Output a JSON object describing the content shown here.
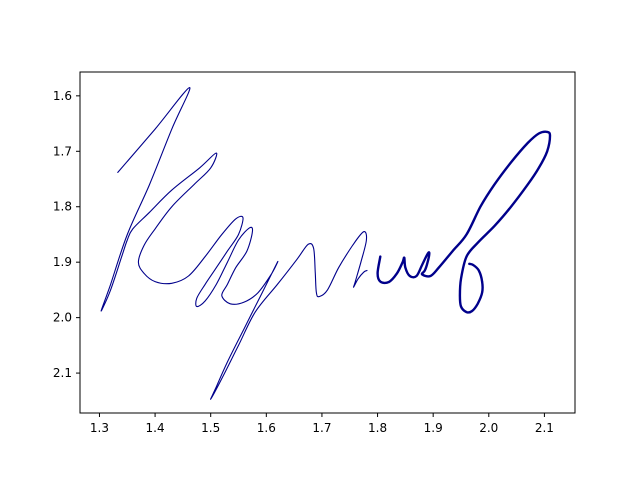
{
  "chart_data": {
    "type": "line",
    "title": "",
    "xlabel": "",
    "ylabel": "",
    "xlim": [
      1.265,
      2.155
    ],
    "ylim": [
      2.172,
      1.557
    ],
    "y_inverted": true,
    "grid": false,
    "legend": "none",
    "x_ticks": [
      {
        "value": 1.3,
        "label": "1.3"
      },
      {
        "value": 1.4,
        "label": "1.4"
      },
      {
        "value": 1.5,
        "label": "1.5"
      },
      {
        "value": 1.6,
        "label": "1.6"
      },
      {
        "value": 1.7,
        "label": "1.7"
      },
      {
        "value": 1.8,
        "label": "1.8"
      },
      {
        "value": 1.9,
        "label": "1.9"
      },
      {
        "value": 2.0,
        "label": "2.0"
      },
      {
        "value": 2.1,
        "label": "2.1"
      }
    ],
    "y_ticks": [
      {
        "value": 1.6,
        "label": "1.6"
      },
      {
        "value": 1.7,
        "label": "1.7"
      },
      {
        "value": 1.8,
        "label": "1.8"
      },
      {
        "value": 1.9,
        "label": "1.9"
      },
      {
        "value": 2.0,
        "label": "2.0"
      },
      {
        "value": 2.1,
        "label": "2.1"
      }
    ],
    "line_color": "#00008b",
    "series": [
      {
        "stroke": "thin",
        "points": [
          [
            1.333,
            1.738
          ],
          [
            1.4,
            1.66
          ],
          [
            1.462,
            1.585
          ],
          [
            1.43,
            1.66
          ],
          [
            1.39,
            1.76
          ],
          [
            1.35,
            1.85
          ],
          [
            1.32,
            1.94
          ],
          [
            1.303,
            1.988
          ],
          [
            1.32,
            1.95
          ],
          [
            1.34,
            1.89
          ],
          [
            1.35,
            1.86
          ],
          [
            1.36,
            1.84
          ],
          [
            1.39,
            1.81
          ],
          [
            1.43,
            1.77
          ],
          [
            1.48,
            1.73
          ],
          [
            1.51,
            1.703
          ],
          [
            1.5,
            1.73
          ],
          [
            1.47,
            1.76
          ],
          [
            1.43,
            1.8
          ],
          [
            1.4,
            1.84
          ],
          [
            1.38,
            1.87
          ],
          [
            1.37,
            1.9
          ],
          [
            1.38,
            1.92
          ],
          [
            1.4,
            1.935
          ],
          [
            1.43,
            1.938
          ],
          [
            1.46,
            1.925
          ],
          [
            1.49,
            1.89
          ],
          [
            1.52,
            1.85
          ],
          [
            1.545,
            1.822
          ],
          [
            1.558,
            1.82
          ],
          [
            1.55,
            1.85
          ],
          [
            1.53,
            1.88
          ],
          [
            1.51,
            1.91
          ],
          [
            1.49,
            1.94
          ],
          [
            1.475,
            1.965
          ],
          [
            1.475,
            1.98
          ],
          [
            1.49,
            1.97
          ],
          [
            1.51,
            1.94
          ],
          [
            1.53,
            1.9
          ],
          [
            1.55,
            1.86
          ],
          [
            1.57,
            1.838
          ],
          [
            1.575,
            1.845
          ],
          [
            1.565,
            1.88
          ],
          [
            1.545,
            1.91
          ],
          [
            1.53,
            1.94
          ],
          [
            1.52,
            1.96
          ],
          [
            1.535,
            1.975
          ],
          [
            1.56,
            1.972
          ],
          [
            1.585,
            1.955
          ],
          [
            1.61,
            1.92
          ],
          [
            1.62,
            1.9
          ],
          [
            1.59,
            1.96
          ],
          [
            1.56,
            2.02
          ],
          [
            1.53,
            2.08
          ],
          [
            1.51,
            2.125
          ],
          [
            1.5,
            2.147
          ],
          [
            1.52,
            2.11
          ],
          [
            1.55,
            2.05
          ],
          [
            1.58,
            1.99
          ],
          [
            1.62,
            1.94
          ],
          [
            1.655,
            1.895
          ],
          [
            1.675,
            1.868
          ],
          [
            1.685,
            1.875
          ],
          [
            1.688,
            1.92
          ],
          [
            1.69,
            1.955
          ],
          [
            1.695,
            1.962
          ],
          [
            1.71,
            1.95
          ],
          [
            1.73,
            1.91
          ],
          [
            1.755,
            1.87
          ],
          [
            1.775,
            1.845
          ],
          [
            1.78,
            1.86
          ],
          [
            1.77,
            1.9
          ],
          [
            1.76,
            1.935
          ],
          [
            1.757,
            1.945
          ],
          [
            1.765,
            1.93
          ],
          [
            1.775,
            1.918
          ],
          [
            1.781,
            1.915
          ]
        ]
      },
      {
        "stroke": "thick",
        "points": [
          [
            1.805,
            1.89
          ],
          [
            1.8,
            1.92
          ],
          [
            1.805,
            1.935
          ],
          [
            1.82,
            1.936
          ],
          [
            1.835,
            1.92
          ],
          [
            1.845,
            1.9
          ],
          [
            1.848,
            1.892
          ],
          [
            1.85,
            1.91
          ],
          [
            1.858,
            1.925
          ],
          [
            1.87,
            1.925
          ],
          [
            1.88,
            1.905
          ],
          [
            1.89,
            1.885
          ],
          [
            1.893,
            1.884
          ],
          [
            1.89,
            1.9
          ],
          [
            1.885,
            1.915
          ],
          [
            1.88,
            1.922
          ],
          [
            1.895,
            1.925
          ],
          [
            1.91,
            1.91
          ],
          [
            1.935,
            1.88
          ],
          [
            1.96,
            1.85
          ],
          [
            1.985,
            1.8
          ],
          [
            2.01,
            1.76
          ],
          [
            2.04,
            1.72
          ],
          [
            2.07,
            1.685
          ],
          [
            2.09,
            1.668
          ],
          [
            2.105,
            1.665
          ],
          [
            2.11,
            1.672
          ],
          [
            2.105,
            1.7
          ],
          [
            2.09,
            1.73
          ],
          [
            2.07,
            1.76
          ],
          [
            2.04,
            1.8
          ],
          [
            2.01,
            1.835
          ],
          [
            1.98,
            1.865
          ],
          [
            1.96,
            1.89
          ],
          [
            1.95,
            1.93
          ],
          [
            1.948,
            1.96
          ],
          [
            1.95,
            1.98
          ],
          [
            1.96,
            1.99
          ],
          [
            1.97,
            1.988
          ],
          [
            1.98,
            1.975
          ],
          [
            1.988,
            1.955
          ],
          [
            1.988,
            1.935
          ],
          [
            1.982,
            1.915
          ],
          [
            1.972,
            1.905
          ],
          [
            1.965,
            1.903
          ]
        ]
      }
    ]
  }
}
